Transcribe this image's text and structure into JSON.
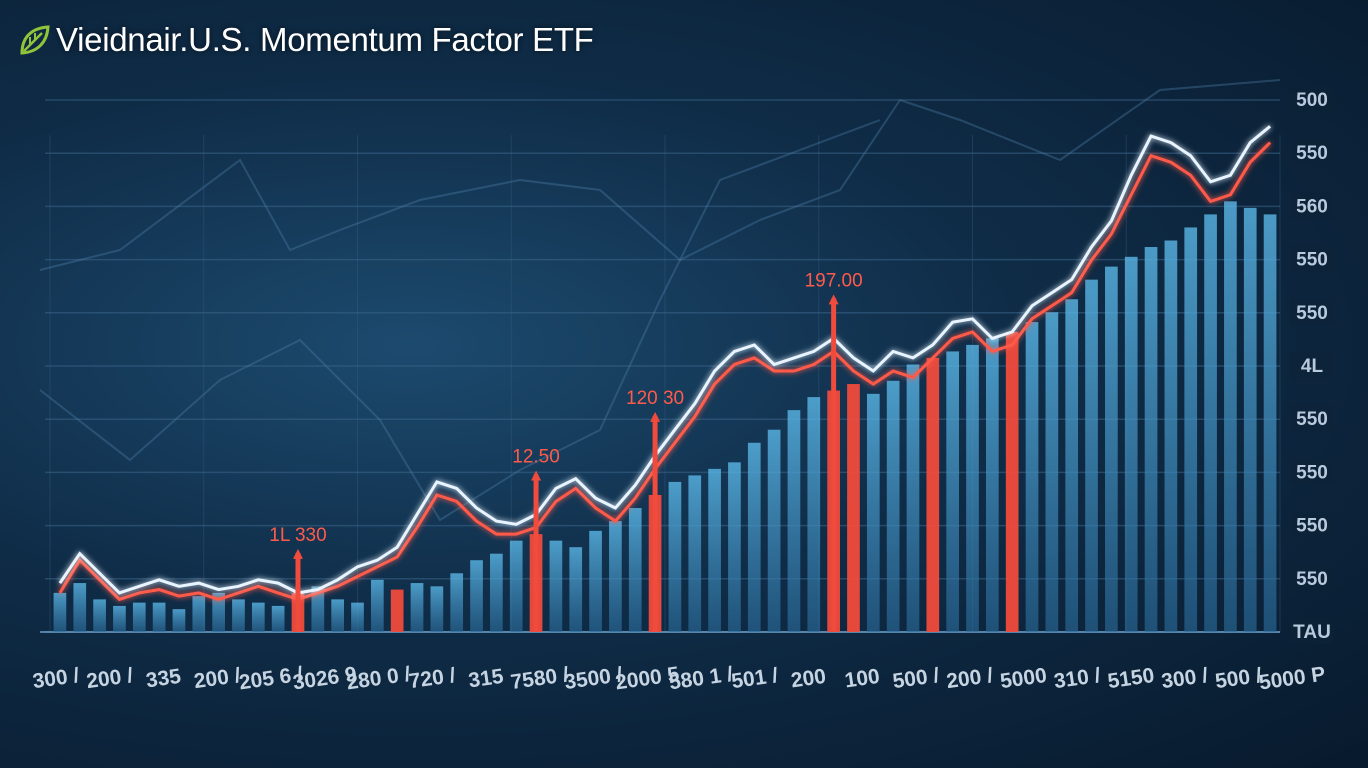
{
  "header": {
    "title": "Vieidnair.U.S. Momentum Factor ETF",
    "logo_icon": "leaf-logo-icon"
  },
  "colors": {
    "background": "#0f2c47",
    "bar_blue": "#4aa6d6",
    "bar_red": "#f04b3c",
    "line_white": "#e8f4ff",
    "line_red": "#ff5a4a",
    "grid": "#3a6488"
  },
  "chart_data": {
    "type": "bar",
    "title": "Vieidnair.U.S. Momentum Factor ETF",
    "xlabel": "",
    "ylabel": "",
    "grid": true,
    "y_axis_side": "right",
    "y_tick_labels": [
      "500",
      "550",
      "560",
      "550",
      "550",
      "4L",
      "550",
      "550",
      "550",
      "550",
      "TAU"
    ],
    "x_tick_labels": [
      "300 /",
      "200 /",
      "335",
      "200 /",
      "205 6 /",
      "3026 9",
      "280 0 /",
      "720 /",
      "315",
      "7580 /",
      "3500 /",
      "2000 5",
      "580 1 /",
      "501 /",
      "200",
      "100",
      "500 /",
      "200 /",
      "5000",
      "310 /",
      "5150",
      "300 /",
      "500 /",
      "5000 P"
    ],
    "annotations": [
      {
        "label": "1L 330",
        "x_index": 12
      },
      {
        "label": "12.50",
        "x_index": 24
      },
      {
        "label": "120 30",
        "x_index": 30
      },
      {
        "label": "197.00",
        "x_index": 39
      }
    ],
    "series": [
      {
        "type": "bar",
        "values": [
          12,
          15,
          10,
          8,
          9,
          9,
          7,
          11,
          12,
          10,
          9,
          8,
          12,
          14,
          10,
          9,
          16,
          13,
          15,
          14,
          18,
          22,
          24,
          28,
          30,
          28,
          26,
          31,
          34,
          38,
          42,
          46,
          48,
          50,
          52,
          58,
          62,
          68,
          72,
          74,
          76,
          73,
          77,
          82,
          84,
          86,
          88,
          90,
          92,
          95,
          98,
          102,
          108,
          112,
          115,
          118,
          120,
          124,
          128,
          132,
          130,
          128
        ]
      },
      {
        "type": "line",
        "values": [
          15,
          24,
          18,
          12,
          14,
          16,
          14,
          15,
          13,
          14,
          16,
          15,
          12,
          13,
          16,
          20,
          22,
          26,
          36,
          46,
          44,
          38,
          34,
          33,
          36,
          44,
          47,
          41,
          38,
          45,
          54,
          62,
          70,
          80,
          86,
          88,
          82,
          84,
          86,
          90,
          84,
          80,
          86,
          84,
          88,
          95,
          96,
          90,
          92,
          100,
          104,
          108,
          118,
          126,
          140,
          152,
          150,
          146,
          138,
          140,
          150,
          155
        ]
      },
      {
        "type": "line",
        "values": [
          12,
          22,
          16,
          10,
          12,
          13,
          11,
          12,
          10,
          12,
          14,
          12,
          10,
          12,
          14,
          17,
          20,
          23,
          32,
          42,
          40,
          34,
          30,
          30,
          32,
          40,
          44,
          38,
          34,
          41,
          50,
          58,
          66,
          76,
          82,
          84,
          80,
          80,
          82,
          86,
          80,
          76,
          80,
          78,
          84,
          90,
          92,
          86,
          88,
          96,
          100,
          104,
          114,
          122,
          134,
          146,
          144,
          140,
          132,
          134,
          144,
          150
        ]
      }
    ]
  }
}
